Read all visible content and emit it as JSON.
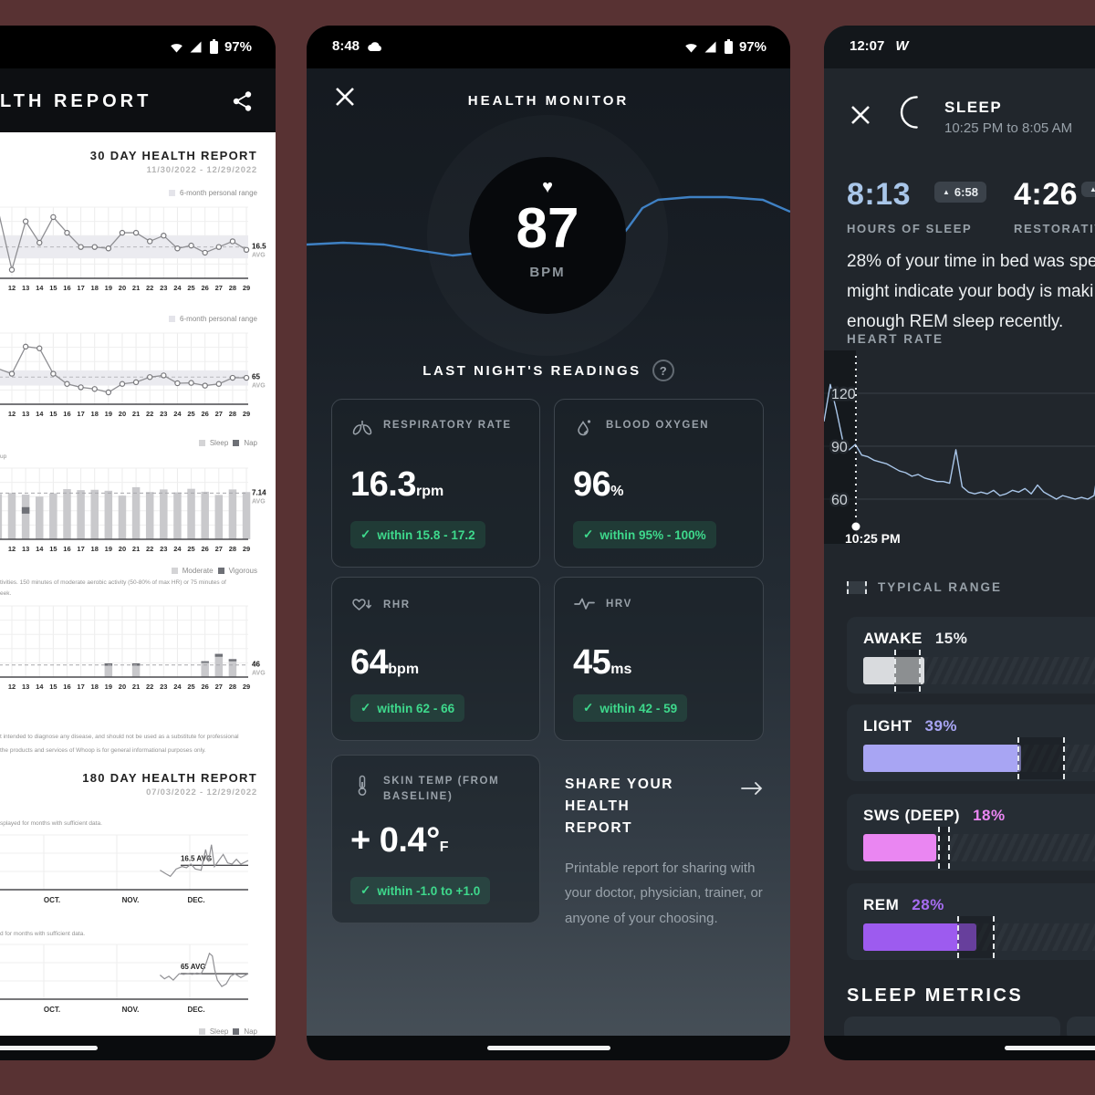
{
  "icons": {
    "heart": "♥",
    "check": "✓",
    "arrow_up": "▲",
    "question": "?",
    "arrow_right": "→"
  },
  "left_phone": {
    "status": {
      "battery_pct": "97%"
    },
    "header": {
      "title_fragment": "LTH REPORT"
    },
    "report30": {
      "title": "30 DAY HEALTH REPORT",
      "dates": "11/30/2022 - 12/29/2022"
    },
    "report180": {
      "title": "180 DAY HEALTH REPORT",
      "dates": "07/03/2022 - 12/29/2022"
    },
    "legends": {
      "personal_range": "6-month personal range",
      "sleep": "Sleep",
      "nap": "Nap",
      "moderate": "Moderate",
      "vigorous": "Vigorous"
    },
    "fragments": {
      "group": "up",
      "activity_note": "tivities. 150 minutes of moderate aerobic activity (50-80% of max HR) or 75 minutes of",
      "activity_note2": "eek.",
      "disclaimer1": "t intended to diagnose any disease, and should not be used as a substitute for professional",
      "disclaimer2": "the products and services of Whoop is for general informational purposes only.",
      "months_note1": "splayed for months with sufficient data.",
      "months_note2": "d for months with sufficient data."
    }
  },
  "middle_phone": {
    "status": {
      "time": "8:48",
      "battery_pct": "97%"
    },
    "title": "HEALTH MONITOR",
    "bpm_value": "87",
    "bpm_unit": "BPM",
    "readings_title": "LAST NIGHT'S READINGS",
    "badge_color": "#3ed98c",
    "cards": [
      {
        "icon": "lungs-icon",
        "title": "RESPIRATORY RATE",
        "value": "16.3",
        "unit": "rpm",
        "badge": "within 15.8 - 17.2"
      },
      {
        "icon": "droplet-icon",
        "title": "BLOOD OXYGEN",
        "value": "96",
        "unit": "%",
        "badge": "within 95% - 100%"
      },
      {
        "icon": "heart-down-icon",
        "title": "RHR",
        "value": "64",
        "unit": "bpm",
        "badge": "within 62 - 66"
      },
      {
        "icon": "pulse-icon",
        "title": "HRV",
        "value": "45",
        "unit": "ms",
        "badge": "within 42 - 59"
      },
      {
        "icon": "thermometer-icon",
        "title": "SKIN TEMP (FROM BASELINE)",
        "value": "+ 0.4°",
        "unit": "F",
        "badge": "within -1.0 to +1.0"
      }
    ],
    "share": {
      "title": "SHARE YOUR HEALTH REPORT",
      "body": "Printable report for sharing with your doctor, physician, trainer, or anyone of your choosing."
    }
  },
  "right_phone": {
    "status": {
      "time": "12:07",
      "logo": "W"
    },
    "sleep_title": "SLEEP",
    "sleep_time": "10:25 PM to 8:05 AM",
    "stats": [
      {
        "value": "8:13",
        "badge": "6:58",
        "label": "HOURS OF SLEEP",
        "color": "#a9c6e9"
      },
      {
        "value": "4:26",
        "badge": "",
        "label": "RESTORATIV",
        "color": "#ffffff"
      }
    ],
    "insight_lines": [
      "28% of your time in bed was spe",
      "might indicate your body is maki",
      "enough REM sleep recently."
    ],
    "hr_title": "HEART RATE",
    "typical_range": "TYPICAL RANGE",
    "stages": [
      {
        "name": "AWAKE",
        "pct": 15,
        "pct_label": "15%",
        "color": "#d9dbde",
        "pct_color": "#e9ebed",
        "range": [
          7.6,
          14.3
        ]
      },
      {
        "name": "LIGHT",
        "pct": 39,
        "pct_label": "39%",
        "color": "#a8a5f3",
        "pct_color": "#a8a5f3",
        "range": [
          38,
          49.8
        ]
      },
      {
        "name": "SWS (DEEP)",
        "pct": 18,
        "pct_label": "18%",
        "color": "#ea86f2",
        "pct_color": "#ea86f2",
        "range": [
          18.5,
          21.4
        ]
      },
      {
        "name": "REM",
        "pct": 28,
        "pct_label": "28%",
        "color": "#9d5bef",
        "pct_color": "#a76df2",
        "range": [
          23.2,
          32.4
        ]
      }
    ],
    "metrics_title": "SLEEP METRICS"
  },
  "chart_data": [
    {
      "id": "resp_daily",
      "type": "line-daily",
      "series_name": "Respiratory rate, 30 day",
      "days": [
        12,
        13,
        14,
        15,
        16,
        17,
        18,
        19,
        20,
        21,
        22,
        23,
        24,
        25,
        26,
        27,
        28,
        29
      ],
      "values": [
        15.7,
        17.4,
        16.65,
        17.55,
        17.0,
        16.5,
        16.5,
        16.45,
        17.0,
        17.0,
        16.7,
        16.9,
        16.45,
        16.55,
        16.3,
        16.5,
        16.7,
        16.4
      ],
      "pre_value": 17.8,
      "avg": 16.5,
      "avg_label": "16.5",
      "band": [
        16.1,
        16.9
      ],
      "y_min": 15.4,
      "y_max": 17.9
    },
    {
      "id": "rhr_daily",
      "type": "line-daily",
      "series_name": "Resting heart rate, 30 day",
      "days": [
        12,
        13,
        14,
        15,
        16,
        17,
        18,
        19,
        20,
        21,
        22,
        23,
        24,
        25,
        26,
        27,
        28,
        29
      ],
      "values": [
        66,
        74,
        73.5,
        66,
        63,
        62,
        61.5,
        60.5,
        63,
        63.5,
        65,
        65.5,
        63.2,
        63.3,
        62.5,
        63,
        64.8,
        64.8
      ],
      "pre_value": 67.5,
      "avg": 65,
      "avg_label": "65",
      "band": [
        62.5,
        67
      ],
      "y_min": 57,
      "y_max": 78
    },
    {
      "id": "sleep_daily",
      "type": "bar-daily",
      "series_name": "Sleep duration, 30 day",
      "days": [
        12,
        13,
        14,
        15,
        16,
        17,
        18,
        19,
        20,
        21,
        22,
        23,
        24,
        25,
        26,
        27,
        28,
        29
      ],
      "values": [
        7.15,
        6.9,
        6.6,
        7.1,
        7.75,
        7.6,
        7.65,
        7.5,
        6.75,
        8.05,
        7.3,
        7.7,
        7.25,
        7.8,
        7.35,
        6.85,
        7.7,
        7.3
      ],
      "caps": [
        0,
        1.0,
        0,
        0,
        0,
        0,
        0,
        0,
        0,
        0,
        0,
        0,
        0,
        0,
        0,
        0,
        0,
        0
      ],
      "cap_inset": 0.28,
      "pre_value": 7.0,
      "avg": 7.14,
      "avg_label": "7.14",
      "y_max": 11
    },
    {
      "id": "activity_daily",
      "type": "bar-daily",
      "series_name": "Activity minutes, 30 day",
      "days": [
        12,
        13,
        14,
        15,
        16,
        17,
        18,
        19,
        20,
        21,
        22,
        23,
        24,
        25,
        26,
        27,
        28,
        29
      ],
      "values": [
        0,
        0,
        0,
        0,
        0,
        0,
        0,
        52,
        0,
        52,
        0,
        0,
        0,
        0,
        60,
        88,
        68,
        0
      ],
      "caps": [
        0,
        0,
        0,
        0,
        0,
        0,
        0,
        9,
        0,
        9,
        0,
        0,
        0,
        0,
        6,
        11,
        8,
        0
      ],
      "cap_inset": 0,
      "pre_value": 0,
      "avg": 46,
      "avg_label": "46",
      "y_max": 270
    },
    {
      "id": "resp_monthly",
      "type": "line-monthly",
      "series_name": "Respiratory rate, 180 day",
      "months": [
        "OCT.",
        "NOV.",
        "DEC."
      ],
      "points": [
        [
          0.7,
          16.1
        ],
        [
          0.72,
          15.8
        ],
        [
          0.735,
          15.6
        ],
        [
          0.755,
          16.2
        ],
        [
          0.775,
          16.4
        ],
        [
          0.79,
          16.3
        ],
        [
          0.805,
          16.6
        ],
        [
          0.82,
          16.2
        ],
        [
          0.84,
          16.1
        ],
        [
          0.855,
          17.8
        ],
        [
          0.865,
          16.8
        ],
        [
          0.875,
          18.2
        ],
        [
          0.885,
          16.4
        ],
        [
          0.9,
          16.9
        ],
        [
          0.915,
          17.4
        ],
        [
          0.93,
          16.7
        ],
        [
          0.945,
          16.6
        ],
        [
          0.96,
          17.0
        ],
        [
          0.975,
          16.6
        ],
        [
          1.0,
          16.9
        ]
      ],
      "avg": 16.5,
      "avg_label": "16.5 AVG",
      "avg_span": [
        0.77,
        1.0
      ],
      "y_min": 14.5,
      "y_max": 19
    },
    {
      "id": "rhr_monthly",
      "type": "line-monthly",
      "series_name": "Resting heart rate, 180 day",
      "months": [
        "OCT.",
        "NOV.",
        "DEC."
      ],
      "points": [
        [
          0.7,
          64
        ],
        [
          0.715,
          61
        ],
        [
          0.73,
          63
        ],
        [
          0.745,
          60
        ],
        [
          0.765,
          65
        ],
        [
          0.78,
          64.5
        ],
        [
          0.795,
          65
        ],
        [
          0.81,
          64.5
        ],
        [
          0.825,
          65.5
        ],
        [
          0.84,
          65
        ],
        [
          0.855,
          72
        ],
        [
          0.868,
          81
        ],
        [
          0.878,
          79
        ],
        [
          0.886,
          68
        ],
        [
          0.895,
          60
        ],
        [
          0.91,
          55
        ],
        [
          0.925,
          57
        ],
        [
          0.94,
          63
        ],
        [
          0.955,
          65
        ],
        [
          0.965,
          63.5
        ],
        [
          0.975,
          62
        ],
        [
          1.0,
          65
        ]
      ],
      "avg": 65,
      "avg_label": "65 AVG",
      "avg_span": [
        0.77,
        1.0
      ],
      "y_min": 45,
      "y_max": 88
    },
    {
      "id": "hm_sparkline",
      "type": "sparkline",
      "series_name": "Heart rate trend",
      "color": "#3f81c4",
      "points": [
        [
          0,
          80
        ],
        [
          40,
          78
        ],
        [
          85,
          80
        ],
        [
          120,
          86
        ],
        [
          160,
          92
        ],
        [
          200,
          88
        ],
        [
          235,
          96
        ],
        [
          270,
          86
        ],
        [
          310,
          79
        ],
        [
          340,
          77
        ],
        [
          352,
          62
        ],
        [
          368,
          40
        ],
        [
          385,
          31
        ],
        [
          420,
          28
        ],
        [
          460,
          28
        ],
        [
          500,
          31
        ],
        [
          530,
          44
        ]
      ]
    },
    {
      "id": "sleep_hr",
      "type": "sleep-hr",
      "series_name": "Heart rate during sleep",
      "color": "#a9c6e9",
      "y_ticks": [
        120,
        90,
        60
      ],
      "start_frac": 0.066,
      "start_label": "10:25 PM",
      "values": [
        104,
        125,
        110,
        93,
        88,
        91,
        85,
        84,
        82,
        81,
        80,
        78,
        76,
        75,
        73,
        74,
        72,
        71,
        70,
        70,
        69,
        88,
        67,
        64,
        63,
        64,
        63,
        65,
        62,
        63,
        65,
        64,
        66,
        63,
        68,
        64,
        62,
        60,
        62,
        61,
        60,
        61,
        60,
        62,
        86,
        68,
        64,
        71,
        63,
        62,
        61,
        60,
        62,
        61,
        60,
        62,
        64,
        63,
        66,
        70,
        65,
        68,
        72,
        66,
        74,
        70,
        78,
        91,
        72,
        70,
        75,
        68,
        73,
        70,
        72,
        71,
        70,
        72
      ]
    }
  ]
}
